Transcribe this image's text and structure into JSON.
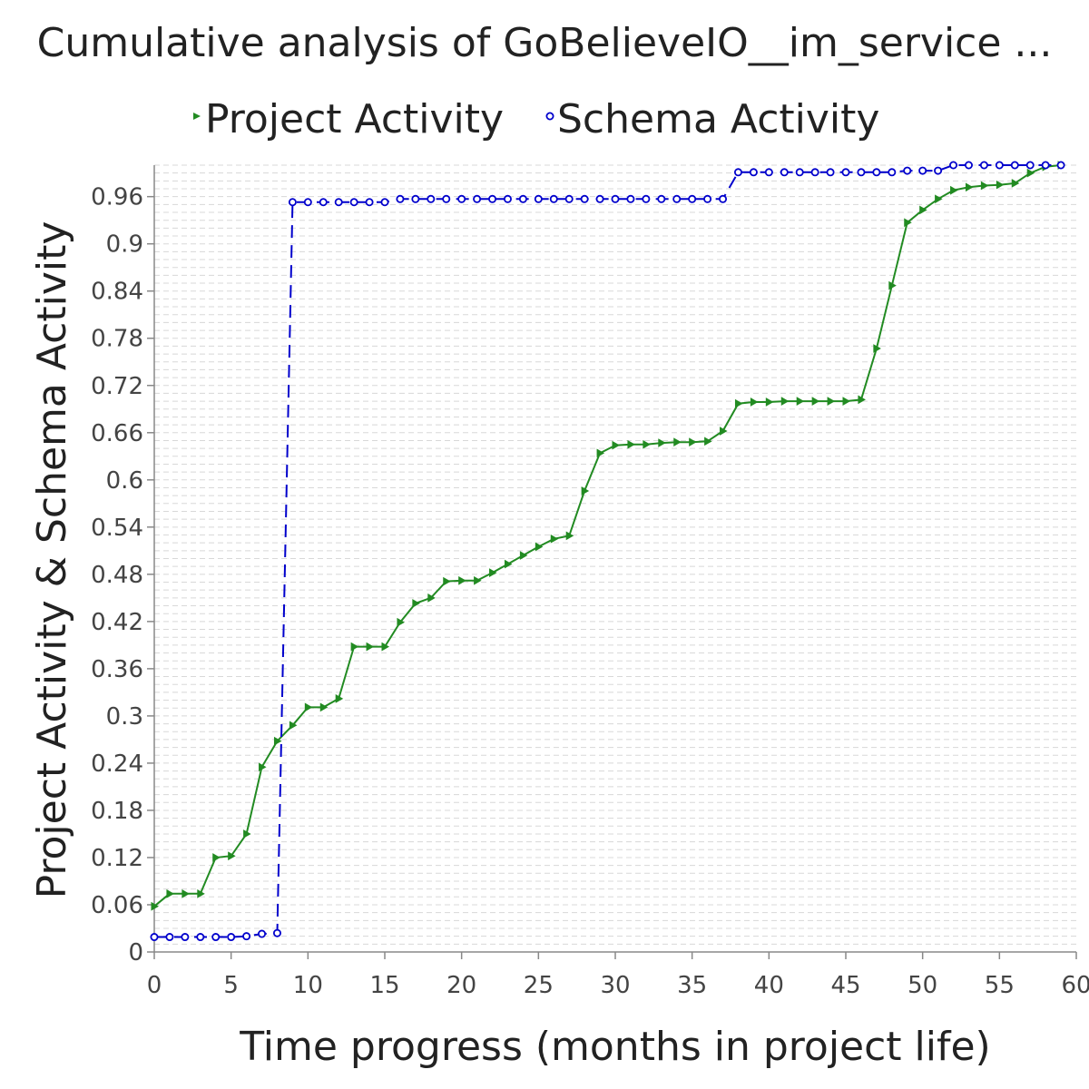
{
  "chart_data": {
    "type": "line",
    "title": "Cumulative analysis of GoBelieveIO__im_service ...",
    "xlabel": "Time progress (months in project life)",
    "ylabel": "Project Activity & Schema Activity",
    "xlim": [
      0,
      60
    ],
    "ylim": [
      0,
      1.0
    ],
    "x_ticks": [
      0,
      5,
      10,
      15,
      20,
      25,
      30,
      35,
      40,
      45,
      50,
      55,
      60
    ],
    "y_ticks": [
      0,
      0.06,
      0.12,
      0.18,
      0.24,
      0.3,
      0.36,
      0.42,
      0.48,
      0.54,
      0.6,
      0.66,
      0.72,
      0.78,
      0.84,
      0.9,
      0.96
    ],
    "grid": true,
    "legend_position": "top",
    "series": [
      {
        "name": "Project Activity",
        "color": "#228b22",
        "marker": "triangle-right",
        "line_style": "solid",
        "x": [
          0,
          1,
          2,
          3,
          4,
          5,
          6,
          7,
          8,
          9,
          10,
          11,
          12,
          13,
          14,
          15,
          16,
          17,
          18,
          19,
          20,
          21,
          22,
          23,
          24,
          25,
          26,
          27,
          28,
          29,
          30,
          31,
          32,
          33,
          34,
          35,
          36,
          37,
          38,
          39,
          40,
          41,
          42,
          43,
          44,
          45,
          46,
          47,
          48,
          49,
          50,
          51,
          52,
          53,
          54,
          55,
          56,
          57,
          58,
          59
        ],
        "y": [
          0.058,
          0.074,
          0.074,
          0.074,
          0.12,
          0.122,
          0.15,
          0.235,
          0.268,
          0.288,
          0.311,
          0.311,
          0.322,
          0.388,
          0.388,
          0.388,
          0.419,
          0.443,
          0.45,
          0.471,
          0.472,
          0.472,
          0.482,
          0.493,
          0.504,
          0.515,
          0.525,
          0.529,
          0.586,
          0.634,
          0.644,
          0.645,
          0.645,
          0.647,
          0.648,
          0.648,
          0.649,
          0.662,
          0.697,
          0.699,
          0.699,
          0.7,
          0.7,
          0.7,
          0.7,
          0.7,
          0.702,
          0.767,
          0.847,
          0.927,
          0.943,
          0.957,
          0.968,
          0.972,
          0.974,
          0.975,
          0.977,
          0.99,
          0.998,
          1.0
        ]
      },
      {
        "name": "Schema Activity",
        "color": "#0000cc",
        "marker": "circle",
        "line_style": "dashed",
        "x": [
          0,
          1,
          2,
          3,
          4,
          5,
          6,
          7,
          8,
          9,
          10,
          11,
          12,
          13,
          14,
          15,
          16,
          17,
          18,
          19,
          20,
          21,
          22,
          23,
          24,
          25,
          26,
          27,
          28,
          29,
          30,
          31,
          32,
          33,
          34,
          35,
          36,
          37,
          38,
          39,
          40,
          41,
          42,
          43,
          44,
          45,
          46,
          47,
          48,
          49,
          50,
          51,
          52,
          53,
          54,
          55,
          56,
          57,
          58,
          59
        ],
        "y": [
          0.019,
          0.019,
          0.019,
          0.019,
          0.019,
          0.019,
          0.02,
          0.023,
          0.024,
          0.953,
          0.953,
          0.953,
          0.953,
          0.953,
          0.953,
          0.953,
          0.957,
          0.957,
          0.957,
          0.957,
          0.957,
          0.957,
          0.957,
          0.957,
          0.957,
          0.957,
          0.957,
          0.957,
          0.957,
          0.957,
          0.957,
          0.957,
          0.957,
          0.957,
          0.957,
          0.957,
          0.957,
          0.957,
          0.991,
          0.991,
          0.991,
          0.991,
          0.991,
          0.991,
          0.991,
          0.991,
          0.991,
          0.991,
          0.991,
          0.993,
          0.993,
          0.993,
          1.0,
          1.0,
          1.0,
          1.0,
          1.0,
          1.0,
          1.0,
          1.0
        ]
      }
    ]
  }
}
